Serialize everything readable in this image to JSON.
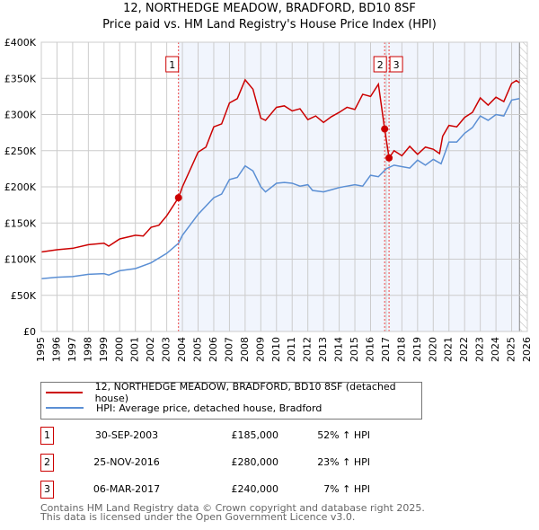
{
  "title": "12, NORTHEDGE MEADOW, BRADFORD, BD10 8SF",
  "subtitle": "Price paid vs. HM Land Registry's House Price Index (HPI)",
  "chart_data": {
    "type": "line",
    "xlim": [
      1995,
      2026
    ],
    "ylim": [
      0,
      400000
    ],
    "x_ticks": [
      "1995",
      "1996",
      "1997",
      "1998",
      "1999",
      "2000",
      "2001",
      "2002",
      "2003",
      "2004",
      "2005",
      "2006",
      "2007",
      "2008",
      "2009",
      "2010",
      "2011",
      "2012",
      "2013",
      "2014",
      "2015",
      "2016",
      "2017",
      "2018",
      "2019",
      "2020",
      "2021",
      "2022",
      "2023",
      "2024",
      "2025",
      "2026"
    ],
    "y_ticks": [
      {
        "v": 0,
        "label": "£0"
      },
      {
        "v": 50000,
        "label": "£50K"
      },
      {
        "v": 100000,
        "label": "£100K"
      },
      {
        "v": 150000,
        "label": "£150K"
      },
      {
        "v": 200000,
        "label": "£200K"
      },
      {
        "v": 250000,
        "label": "£250K"
      },
      {
        "v": 300000,
        "label": "£300K"
      },
      {
        "v": 350000,
        "label": "£350K"
      },
      {
        "v": 400000,
        "label": "£400K"
      }
    ],
    "series": [
      {
        "name": "12, NORTHEDGE MEADOW, BRADFORD, BD10 8SF (detached house)",
        "color": "#cc0000",
        "points": [
          [
            1995,
            110
          ],
          [
            1996,
            113
          ],
          [
            1997,
            115
          ],
          [
            1998,
            120
          ],
          [
            1999,
            122
          ],
          [
            1999.3,
            118
          ],
          [
            2000,
            128
          ],
          [
            2001,
            133
          ],
          [
            2001.5,
            132
          ],
          [
            2002,
            144
          ],
          [
            2002.5,
            147
          ],
          [
            2003,
            160
          ],
          [
            2003.75,
            185
          ],
          [
            2004,
            200
          ],
          [
            2005,
            248
          ],
          [
            2005.5,
            255
          ],
          [
            2006,
            283
          ],
          [
            2006.5,
            287
          ],
          [
            2007,
            316
          ],
          [
            2007.5,
            322
          ],
          [
            2008,
            348
          ],
          [
            2008.5,
            335
          ],
          [
            2009,
            295
          ],
          [
            2009.3,
            292
          ],
          [
            2010,
            310
          ],
          [
            2010.5,
            312
          ],
          [
            2011,
            305
          ],
          [
            2011.5,
            308
          ],
          [
            2012,
            293
          ],
          [
            2012.5,
            298
          ],
          [
            2013,
            289
          ],
          [
            2013.5,
            297
          ],
          [
            2014,
            303
          ],
          [
            2014.5,
            310
          ],
          [
            2015,
            307
          ],
          [
            2015.5,
            328
          ],
          [
            2016,
            325
          ],
          [
            2016.5,
            342
          ],
          [
            2016.9,
            280
          ],
          [
            2017.18,
            240
          ],
          [
            2017.5,
            250
          ],
          [
            2018,
            243
          ],
          [
            2018.5,
            256
          ],
          [
            2019,
            245
          ],
          [
            2019.5,
            255
          ],
          [
            2020,
            252
          ],
          [
            2020.4,
            246
          ],
          [
            2020.6,
            270
          ],
          [
            2021,
            285
          ],
          [
            2021.5,
            283
          ],
          [
            2022,
            296
          ],
          [
            2022.5,
            303
          ],
          [
            2023,
            323
          ],
          [
            2023.5,
            313
          ],
          [
            2024,
            324
          ],
          [
            2024.5,
            318
          ],
          [
            2025,
            343
          ],
          [
            2025.3,
            347
          ],
          [
            2025.5,
            344
          ]
        ]
      },
      {
        "name": "HPI: Average price, detached house, Bradford",
        "color": "#5b8fd4",
        "points": [
          [
            1995,
            73
          ],
          [
            1996,
            75
          ],
          [
            1997,
            76
          ],
          [
            1998,
            79
          ],
          [
            1999,
            80
          ],
          [
            1999.3,
            78
          ],
          [
            2000,
            84
          ],
          [
            2001,
            87
          ],
          [
            2002,
            95
          ],
          [
            2003,
            108
          ],
          [
            2003.75,
            122
          ],
          [
            2004,
            133
          ],
          [
            2005,
            162
          ],
          [
            2006,
            185
          ],
          [
            2006.5,
            190
          ],
          [
            2007,
            210
          ],
          [
            2007.5,
            213
          ],
          [
            2008,
            229
          ],
          [
            2008.5,
            222
          ],
          [
            2009,
            200
          ],
          [
            2009.3,
            193
          ],
          [
            2010,
            205
          ],
          [
            2010.5,
            206
          ],
          [
            2011,
            205
          ],
          [
            2011.5,
            201
          ],
          [
            2012,
            203
          ],
          [
            2012.3,
            195
          ],
          [
            2013,
            193
          ],
          [
            2013.5,
            196
          ],
          [
            2014,
            199
          ],
          [
            2014.5,
            201
          ],
          [
            2015,
            203
          ],
          [
            2015.5,
            201
          ],
          [
            2016,
            216
          ],
          [
            2016.5,
            214
          ],
          [
            2017,
            225
          ],
          [
            2017.5,
            230
          ],
          [
            2018,
            228
          ],
          [
            2018.5,
            226
          ],
          [
            2019,
            237
          ],
          [
            2019.5,
            230
          ],
          [
            2020,
            238
          ],
          [
            2020.5,
            232
          ],
          [
            2021,
            262
          ],
          [
            2021.5,
            262
          ],
          [
            2022,
            274
          ],
          [
            2022.5,
            282
          ],
          [
            2023,
            298
          ],
          [
            2023.5,
            292
          ],
          [
            2024,
            300
          ],
          [
            2024.5,
            298
          ],
          [
            2025,
            320
          ],
          [
            2025.5,
            322
          ]
        ]
      }
    ],
    "sales": [
      {
        "n": "1",
        "x": 2003.75,
        "y": 185
      },
      {
        "n": "2",
        "x": 2016.9,
        "y": 280
      },
      {
        "n": "3",
        "x": 2017.18,
        "y": 240
      }
    ],
    "shaded_from": 2003.75,
    "data_end": 2025.5
  },
  "legend": [
    "12, NORTHEDGE MEADOW, BRADFORD, BD10 8SF (detached house)",
    "HPI: Average price, detached house, Bradford"
  ],
  "table": [
    {
      "n": "1",
      "date": "30-SEP-2003",
      "price": "£185,000",
      "hpi": "52% ↑ HPI"
    },
    {
      "n": "2",
      "date": "25-NOV-2016",
      "price": "£280,000",
      "hpi": "23% ↑ HPI"
    },
    {
      "n": "3",
      "date": "06-MAR-2017",
      "price": "£240,000",
      "hpi": "7% ↑ HPI"
    }
  ],
  "footer": [
    "Contains HM Land Registry data © Crown copyright and database right 2025.",
    "This data is licensed under the Open Government Licence v3.0."
  ]
}
